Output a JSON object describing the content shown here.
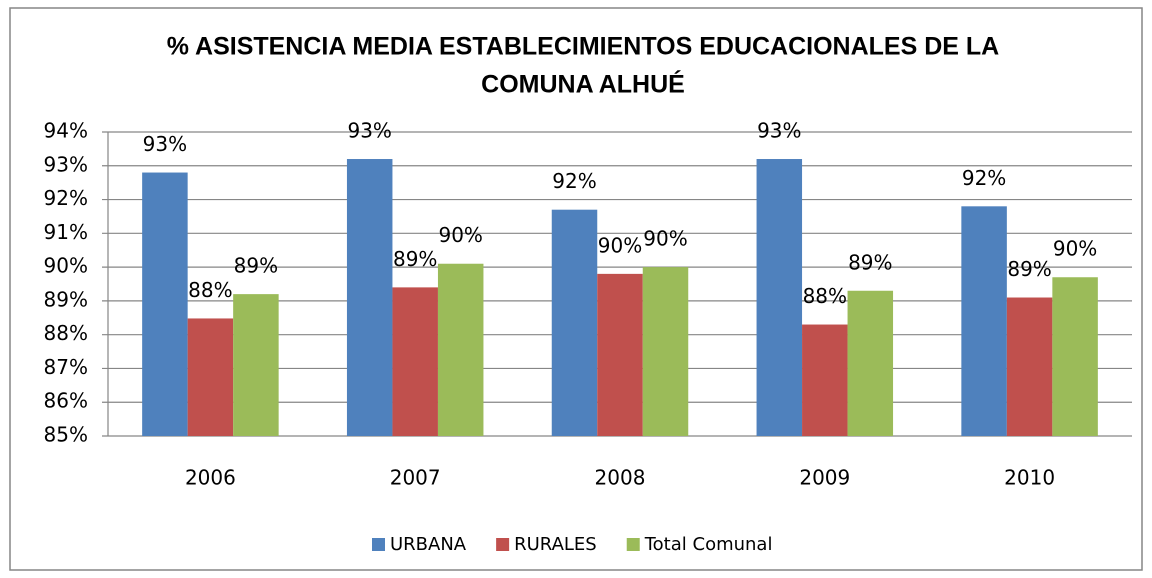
{
  "chart_data": {
    "type": "bar",
    "title": [
      "% ASISTENCIA MEDIA ESTABLECIMIENTOS EDUCACIONALES DE LA",
      "COMUNA ALHUÉ"
    ],
    "categories": [
      "2006",
      "2007",
      "2008",
      "2009",
      "2010"
    ],
    "series": [
      {
        "name": "URBANA",
        "color": "#4f81bd",
        "values": [
          92.8,
          93.2,
          91.7,
          93.2,
          91.8
        ],
        "value_labels": [
          "93%",
          "93%",
          "92%",
          "93%",
          "92%"
        ]
      },
      {
        "name": "RURALES",
        "color": "#c0504d",
        "values": [
          88.48,
          89.4,
          89.8,
          88.3,
          89.1
        ],
        "value_labels": [
          "88%",
          "89%",
          "90%",
          "88%",
          "89%"
        ]
      },
      {
        "name": "Total Comunal",
        "color": "#9bbb59",
        "values": [
          89.2,
          90.1,
          90.0,
          89.3,
          89.7
        ],
        "value_labels": [
          "89%",
          "90%",
          "90%",
          "89%",
          "90%"
        ]
      }
    ],
    "ylim": [
      85,
      94
    ],
    "yticks": [
      {
        "value": 85,
        "label": "85%"
      },
      {
        "value": 86,
        "label": "86%"
      },
      {
        "value": 87,
        "label": "87%"
      },
      {
        "value": 88,
        "label": "88%"
      },
      {
        "value": 89,
        "label": "89%"
      },
      {
        "value": 90,
        "label": "90%"
      },
      {
        "value": 91,
        "label": "91%"
      },
      {
        "value": 92,
        "label": "92%"
      },
      {
        "value": 93,
        "label": "93%"
      },
      {
        "value": 94,
        "label": "94%"
      }
    ],
    "grid": true,
    "legend": "bottom"
  }
}
